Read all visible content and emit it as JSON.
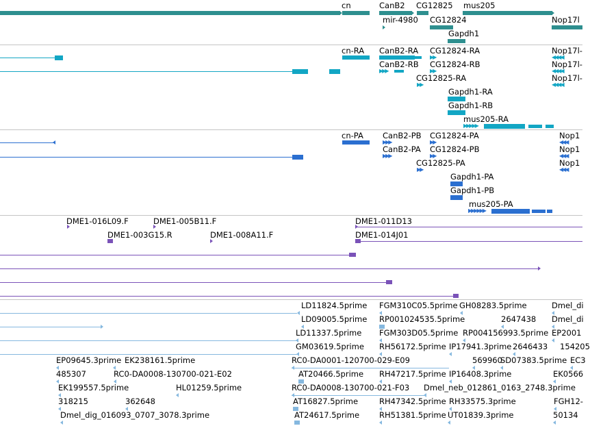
{
  "colors": {
    "gene": "#2e8f8f",
    "transcript": "#12a6c4",
    "protein": "#2b6fd0",
    "clone": "#7a52b8",
    "est": "#85b8df",
    "separator": "#c4c4c4"
  },
  "tracks": [
    {
      "name": "gene-track",
      "kind": "gene",
      "labels": [
        "cn",
        "CanB2",
        "CG12825",
        "mus205",
        "mir-4980",
        "CG12824",
        "Nop17l",
        "Gapdh1"
      ]
    },
    {
      "name": "transcript-track",
      "kind": "transcript",
      "labels": [
        "cn-RA",
        "CanB2-RA",
        "CG12824-RA",
        "Nop17l-",
        "CanB2-RB",
        "CG12824-RB",
        "Nop17l-",
        "CG12825-RA",
        "Nop17l-",
        "Gapdh1-RA",
        "Gapdh1-RB",
        "mus205-RA"
      ]
    },
    {
      "name": "protein-track",
      "kind": "protein",
      "labels": [
        "cn-PA",
        "CanB2-PB",
        "CG12824-PA",
        "Nop1",
        "CanB2-PA",
        "CG12824-PB",
        "Nop1",
        "CG12825-PA",
        "Nop1",
        "Gapdh1-PA",
        "Gapdh1-PB",
        "mus205-PA"
      ]
    },
    {
      "name": "clone-track",
      "kind": "clone",
      "labels": [
        "DME1-016L09.F",
        "DME1-005B11.F",
        "DME1-011D13",
        "DME1-003G15.R",
        "DME1-008A11.F",
        "DME1-014J01"
      ]
    },
    {
      "name": "est-track",
      "kind": "est",
      "labels": [
        "LD11824.5prime",
        "FGM310C05.5prime",
        "GH08283.5prime",
        "Dmel_di",
        "LD09005.5prime",
        "RP001024535.5prime",
        "2647438",
        "Dmel_di",
        "LD11337.5prime",
        "FGM303D05.5prime",
        "RP004156993.5prime",
        "EP2001",
        "GM03619.5prime",
        "RH56172.5prime",
        "IP17941.3prime",
        "2646433",
        "154205",
        "EP09645.3prime",
        "EK238161.5prime",
        "RC0-DA0001-120700-029-E09",
        "569960",
        "SD07383.5prime",
        "EC3",
        "485307",
        "RC0-DA0008-130700-021-E02",
        "AT20466.5prime",
        "RH47217.5prime",
        "IP16408.3prime",
        "EK0566",
        "EK199557.5prime",
        "HL01259.5prime",
        "RC0-DA0008-130700-021-F03",
        "Dmel_neb_012861_0163_2748.3prime",
        "318215",
        "362648",
        "AT16827.5prime",
        "RH47342.5prime",
        "RH33575.3prime",
        "FGH12-",
        "Dmel_dig_016093_0707_3078.3prime",
        "AT24617.5prime",
        "RH51381.5prime",
        "UT01839.3prime",
        "50134"
      ]
    }
  ]
}
